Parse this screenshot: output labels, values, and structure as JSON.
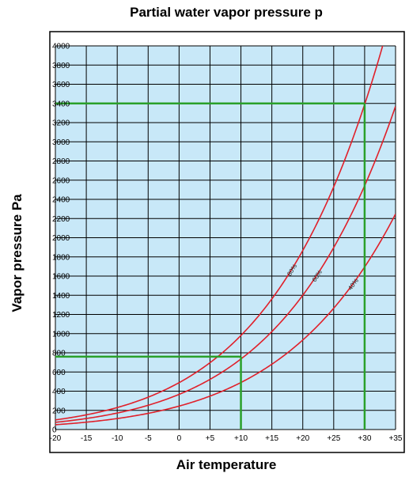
{
  "chart_data": {
    "type": "line",
    "title": "Partial water vapor pressure p",
    "xlabel": "Air temperature",
    "ylabel": "Vapor pressure Pa",
    "xlim": [
      -20,
      35
    ],
    "ylim": [
      0,
      4000
    ],
    "x_ticks": [
      -20,
      -15,
      -10,
      -5,
      0,
      5,
      10,
      15,
      20,
      25,
      30,
      35
    ],
    "x_tick_labels": [
      "-20",
      "-15",
      "-10",
      "-5",
      "0",
      "+5",
      "+10",
      "+15",
      "+20",
      "+25",
      "+30",
      "+35"
    ],
    "y_ticks": [
      0,
      200,
      400,
      600,
      800,
      1000,
      1200,
      1400,
      1600,
      1800,
      2000,
      2200,
      2400,
      2600,
      2800,
      3000,
      3200,
      3400,
      3600,
      3800,
      4000
    ],
    "grid": true,
    "background_color": "#c8e8f8",
    "curve_color": "#e0202a",
    "guide_color": "#2aa02a",
    "series": [
      {
        "name": "80%",
        "relative_humidity": 0.8,
        "label_x": 17.5
      },
      {
        "name": "60%",
        "relative_humidity": 0.6,
        "label_x": 21.5
      },
      {
        "name": "40%",
        "relative_humidity": 0.4,
        "label_x": 27.3
      }
    ],
    "guides": [
      {
        "x": 10,
        "y": 760
      },
      {
        "x": 30,
        "y": 3400
      }
    ]
  }
}
